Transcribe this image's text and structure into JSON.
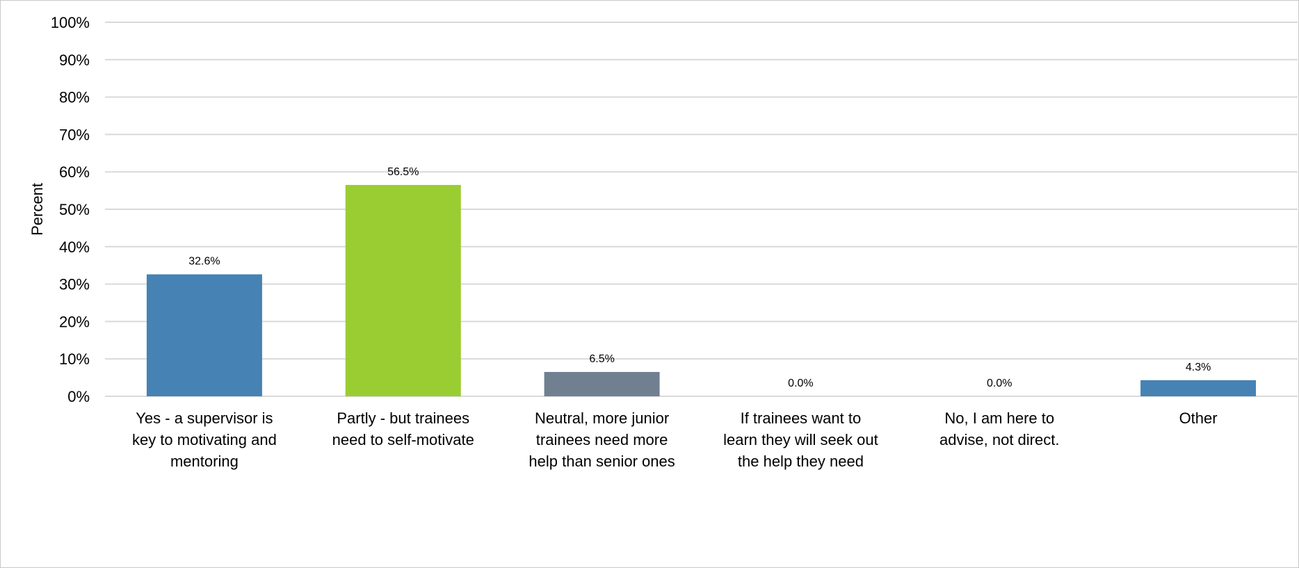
{
  "chart_data": {
    "type": "bar",
    "title": "",
    "xlabel": "",
    "ylabel": "Percent",
    "ylim": [
      0,
      100
    ],
    "yticks": [
      "0%",
      "10%",
      "20%",
      "30%",
      "40%",
      "50%",
      "60%",
      "70%",
      "80%",
      "90%",
      "100%"
    ],
    "grid": true,
    "legend": "none",
    "categories": [
      [
        "Yes - a supervisor is",
        "key to motivating and",
        "mentoring"
      ],
      [
        "Partly - but trainees",
        "need to self-motivate"
      ],
      [
        "Neutral, more junior",
        "trainees need more",
        "help than senior ones"
      ],
      [
        "If trainees want to",
        "learn they will seek out",
        "the help they need"
      ],
      [
        "No, I am here to",
        "advise, not direct."
      ],
      [
        "Other"
      ]
    ],
    "values": [
      32.6,
      56.5,
      6.5,
      0.0,
      0.0,
      4.3
    ],
    "data_labels": [
      "32.6%",
      "56.5%",
      "6.5%",
      "0.0%",
      "0.0%",
      "4.3%"
    ],
    "bar_colors": [
      "#4682b4",
      "#9acd32",
      "#708090",
      "#4682b4",
      "#4682b4",
      "#4682b4"
    ]
  }
}
